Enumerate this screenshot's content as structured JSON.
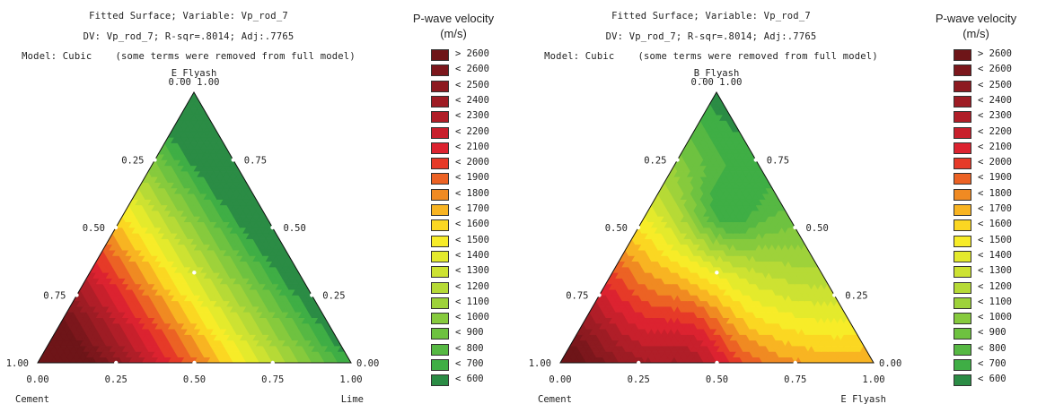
{
  "legend": {
    "title_line1": "P-wave velocity",
    "title_line2": "(m/s)",
    "items": [
      {
        "label": "> 2600",
        "color": "#6e1518"
      },
      {
        "label": "< 2600",
        "color": "#7c171c"
      },
      {
        "label": "< 2500",
        "color": "#8d1a20"
      },
      {
        "label": "< 2400",
        "color": "#9e1c24"
      },
      {
        "label": "< 2300",
        "color": "#b01e28"
      },
      {
        "label": "< 2200",
        "color": "#c8202c"
      },
      {
        "label": "< 2100",
        "color": "#dc2330"
      },
      {
        "label": "< 2000",
        "color": "#e63a28"
      },
      {
        "label": "< 1900",
        "color": "#ec6224"
      },
      {
        "label": "< 1800",
        "color": "#f08a22"
      },
      {
        "label": "< 1700",
        "color": "#f8b422"
      },
      {
        "label": "< 1600",
        "color": "#fbd722"
      },
      {
        "label": "< 1500",
        "color": "#f7ec28"
      },
      {
        "label": "< 1400",
        "color": "#e4ea2c"
      },
      {
        "label": "< 1300",
        "color": "#cde232"
      },
      {
        "label": "< 1200",
        "color": "#b6da36"
      },
      {
        "label": "< 1100",
        "color": "#9ed23a"
      },
      {
        "label": "< 1000",
        "color": "#86ca3d"
      },
      {
        "label": "< 900",
        "color": "#6ec240"
      },
      {
        "label": "< 800",
        "color": "#56b843"
      },
      {
        "label": "< 700",
        "color": "#3fae45"
      },
      {
        "label": "< 600",
        "color": "#2b8c45"
      }
    ]
  },
  "chart_data": [
    {
      "type": "ternary-contour",
      "title": "Fitted Surface; Variable: Vp_rod_7",
      "subtitle": "DV: Vp_rod_7; R-sqr=.8014; Adj:.7765",
      "model_note": "Model: Cubic    (some terms were removed from full model)",
      "top_axis": "E_Flyash",
      "left_axis": "Cement",
      "right_axis": "Lime",
      "top_vertex_label": "0.00  1.00",
      "left_vertex_label": "1.00",
      "right_vertex_label": "0.00",
      "bottom_ticks": [
        "0.00",
        "0.25",
        "0.50",
        "0.75",
        "1.00"
      ],
      "left_ticks": [
        "0.25",
        "0.50",
        "0.75"
      ],
      "right_ticks": [
        "0.75",
        "0.50",
        "0.25"
      ]
    },
    {
      "type": "ternary-contour",
      "title": "Fitted Surface; Variable: Vp_rod_7",
      "subtitle": "DV: Vp_rod_7; R-sqr=.8014; Adj:.7765",
      "model_note": "Model: Cubic    (some terms were removed from full model)",
      "top_axis": "B_Flyash",
      "left_axis": "Cement",
      "right_axis": "E_Flyash",
      "top_vertex_label": "0.00  1.00",
      "left_vertex_label": "1.00",
      "right_vertex_label": "0.00",
      "bottom_ticks": [
        "0.00",
        "0.25",
        "0.50",
        "0.75",
        "1.00"
      ],
      "left_ticks": [
        "0.25",
        "0.50",
        "0.75"
      ],
      "right_ticks": [
        "0.75",
        "0.50",
        "0.25"
      ]
    }
  ]
}
